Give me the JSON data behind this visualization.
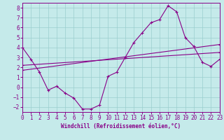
{
  "xlabel": "Windchill (Refroidissement éolien,°C)",
  "xlim": [
    0,
    23
  ],
  "ylim": [
    -2.5,
    8.5
  ],
  "xticks": [
    0,
    1,
    2,
    3,
    4,
    5,
    6,
    7,
    8,
    9,
    10,
    11,
    12,
    13,
    14,
    15,
    16,
    17,
    18,
    19,
    20,
    21,
    22,
    23
  ],
  "yticks": [
    -2,
    -1,
    0,
    1,
    2,
    3,
    4,
    5,
    6,
    7,
    8
  ],
  "bg_color": "#c5eaea",
  "grid_color": "#9acece",
  "line_color": "#880088",
  "line1_x": [
    0,
    1,
    2,
    3,
    4,
    5,
    6,
    7,
    8,
    9,
    10,
    11,
    12,
    13,
    14,
    15,
    16,
    17,
    18,
    19,
    20,
    21,
    22,
    23
  ],
  "line1_y": [
    4.0,
    2.8,
    1.5,
    -0.3,
    0.1,
    -0.6,
    -1.1,
    -2.2,
    -2.2,
    -1.8,
    1.1,
    1.5,
    3.0,
    4.5,
    5.5,
    6.5,
    6.8,
    8.2,
    7.6,
    5.0,
    4.1,
    2.5,
    2.1,
    2.8
  ],
  "line2_x": [
    0,
    23
  ],
  "line2_y": [
    1.7,
    4.3
  ],
  "line3_x": [
    0,
    23
  ],
  "line3_y": [
    2.2,
    3.5
  ]
}
